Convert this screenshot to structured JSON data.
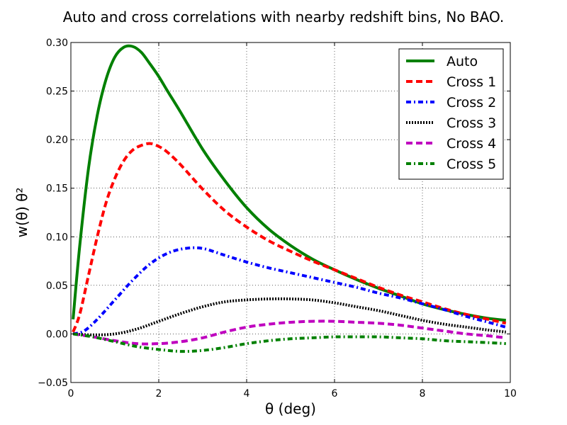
{
  "chart_data": {
    "type": "line",
    "title": "Auto and cross correlations with nearby redshift bins, No BAO.",
    "xlabel": "θ (deg)",
    "ylabel": "w(θ) θ²",
    "xlim": [
      0,
      10
    ],
    "ylim": [
      -0.05,
      0.3
    ],
    "xticks": [
      0,
      2,
      4,
      6,
      8,
      10
    ],
    "xtick_labels": [
      "0",
      "2",
      "4",
      "6",
      "8",
      "10"
    ],
    "yticks": [
      -0.05,
      0.0,
      0.05,
      0.1,
      0.15,
      0.2,
      0.25,
      0.3
    ],
    "ytick_labels": [
      "−0.05",
      "0.00",
      "0.05",
      "0.10",
      "0.15",
      "0.20",
      "0.25",
      "0.30"
    ],
    "grid": true,
    "legend_position": "top-right",
    "series": [
      {
        "name": "Auto",
        "color": "#008000",
        "style": "solid",
        "x": [
          0.05,
          0.2,
          0.4,
          0.6,
          0.8,
          1.0,
          1.2,
          1.4,
          1.6,
          1.8,
          2.0,
          2.2,
          2.5,
          3.0,
          3.5,
          4.0,
          4.5,
          5.0,
          5.5,
          6.0,
          6.5,
          7.0,
          7.5,
          8.0,
          8.5,
          9.0,
          9.5,
          9.9
        ],
        "y": [
          0.015,
          0.09,
          0.17,
          0.225,
          0.262,
          0.285,
          0.295,
          0.296,
          0.29,
          0.278,
          0.265,
          0.25,
          0.228,
          0.19,
          0.158,
          0.13,
          0.108,
          0.091,
          0.077,
          0.066,
          0.056,
          0.047,
          0.039,
          0.031,
          0.025,
          0.02,
          0.016,
          0.014
        ]
      },
      {
        "name": "Cross 1",
        "color": "#ff0000",
        "style": "dashed",
        "x": [
          0.05,
          0.2,
          0.4,
          0.6,
          0.8,
          1.0,
          1.2,
          1.4,
          1.6,
          1.8,
          2.0,
          2.2,
          2.5,
          3.0,
          3.5,
          4.0,
          4.5,
          5.0,
          5.5,
          6.0,
          6.5,
          7.0,
          7.5,
          8.0,
          8.5,
          9.0,
          9.5,
          9.9
        ],
        "y": [
          0.002,
          0.02,
          0.06,
          0.1,
          0.135,
          0.16,
          0.178,
          0.189,
          0.194,
          0.196,
          0.193,
          0.187,
          0.174,
          0.149,
          0.127,
          0.11,
          0.096,
          0.085,
          0.075,
          0.066,
          0.057,
          0.048,
          0.04,
          0.033,
          0.026,
          0.02,
          0.015,
          0.011
        ]
      },
      {
        "name": "Cross 2",
        "color": "#0000ff",
        "style": "dashdot",
        "x": [
          0.05,
          0.3,
          0.6,
          1.0,
          1.4,
          1.8,
          2.2,
          2.6,
          3.0,
          3.5,
          4.0,
          4.5,
          5.0,
          5.5,
          6.0,
          6.5,
          7.0,
          7.5,
          8.0,
          8.5,
          9.0,
          9.5,
          9.9
        ],
        "y": [
          0.0,
          0.003,
          0.015,
          0.035,
          0.055,
          0.072,
          0.083,
          0.088,
          0.088,
          0.081,
          0.074,
          0.068,
          0.063,
          0.058,
          0.053,
          0.048,
          0.042,
          0.037,
          0.031,
          0.025,
          0.018,
          0.012,
          0.007
        ]
      },
      {
        "name": "Cross 3",
        "color": "#000000",
        "style": "dotted",
        "x": [
          0.05,
          0.5,
          1.0,
          1.5,
          2.0,
          2.5,
          3.0,
          3.5,
          4.0,
          4.5,
          5.0,
          5.5,
          6.0,
          6.5,
          7.0,
          7.5,
          8.0,
          8.5,
          9.0,
          9.5,
          9.9
        ],
        "y": [
          0.0,
          -0.001,
          0.0,
          0.005,
          0.013,
          0.021,
          0.028,
          0.033,
          0.035,
          0.036,
          0.036,
          0.035,
          0.032,
          0.028,
          0.024,
          0.019,
          0.014,
          0.01,
          0.007,
          0.004,
          0.002
        ]
      },
      {
        "name": "Cross 4",
        "color": "#bf00bf",
        "style": "dashed",
        "x": [
          0.05,
          0.5,
          1.0,
          1.5,
          2.0,
          2.5,
          3.0,
          3.5,
          4.0,
          4.5,
          5.0,
          5.5,
          6.0,
          6.5,
          7.0,
          7.5,
          8.0,
          8.5,
          9.0,
          9.5,
          9.9
        ],
        "y": [
          0.0,
          -0.003,
          -0.007,
          -0.01,
          -0.01,
          -0.008,
          -0.004,
          0.002,
          0.007,
          0.01,
          0.012,
          0.013,
          0.013,
          0.012,
          0.011,
          0.009,
          0.006,
          0.003,
          0.0,
          -0.002,
          -0.004
        ]
      },
      {
        "name": "Cross 5",
        "color": "#008000",
        "style": "dashdot",
        "x": [
          0.05,
          0.5,
          1.0,
          1.5,
          2.0,
          2.5,
          3.0,
          3.5,
          4.0,
          4.5,
          5.0,
          5.5,
          6.0,
          6.5,
          7.0,
          7.5,
          8.0,
          8.5,
          9.0,
          9.5,
          9.9
        ],
        "y": [
          0.0,
          -0.003,
          -0.008,
          -0.013,
          -0.016,
          -0.018,
          -0.017,
          -0.014,
          -0.01,
          -0.007,
          -0.005,
          -0.004,
          -0.003,
          -0.003,
          -0.003,
          -0.004,
          -0.005,
          -0.007,
          -0.008,
          -0.009,
          -0.01
        ]
      }
    ]
  }
}
